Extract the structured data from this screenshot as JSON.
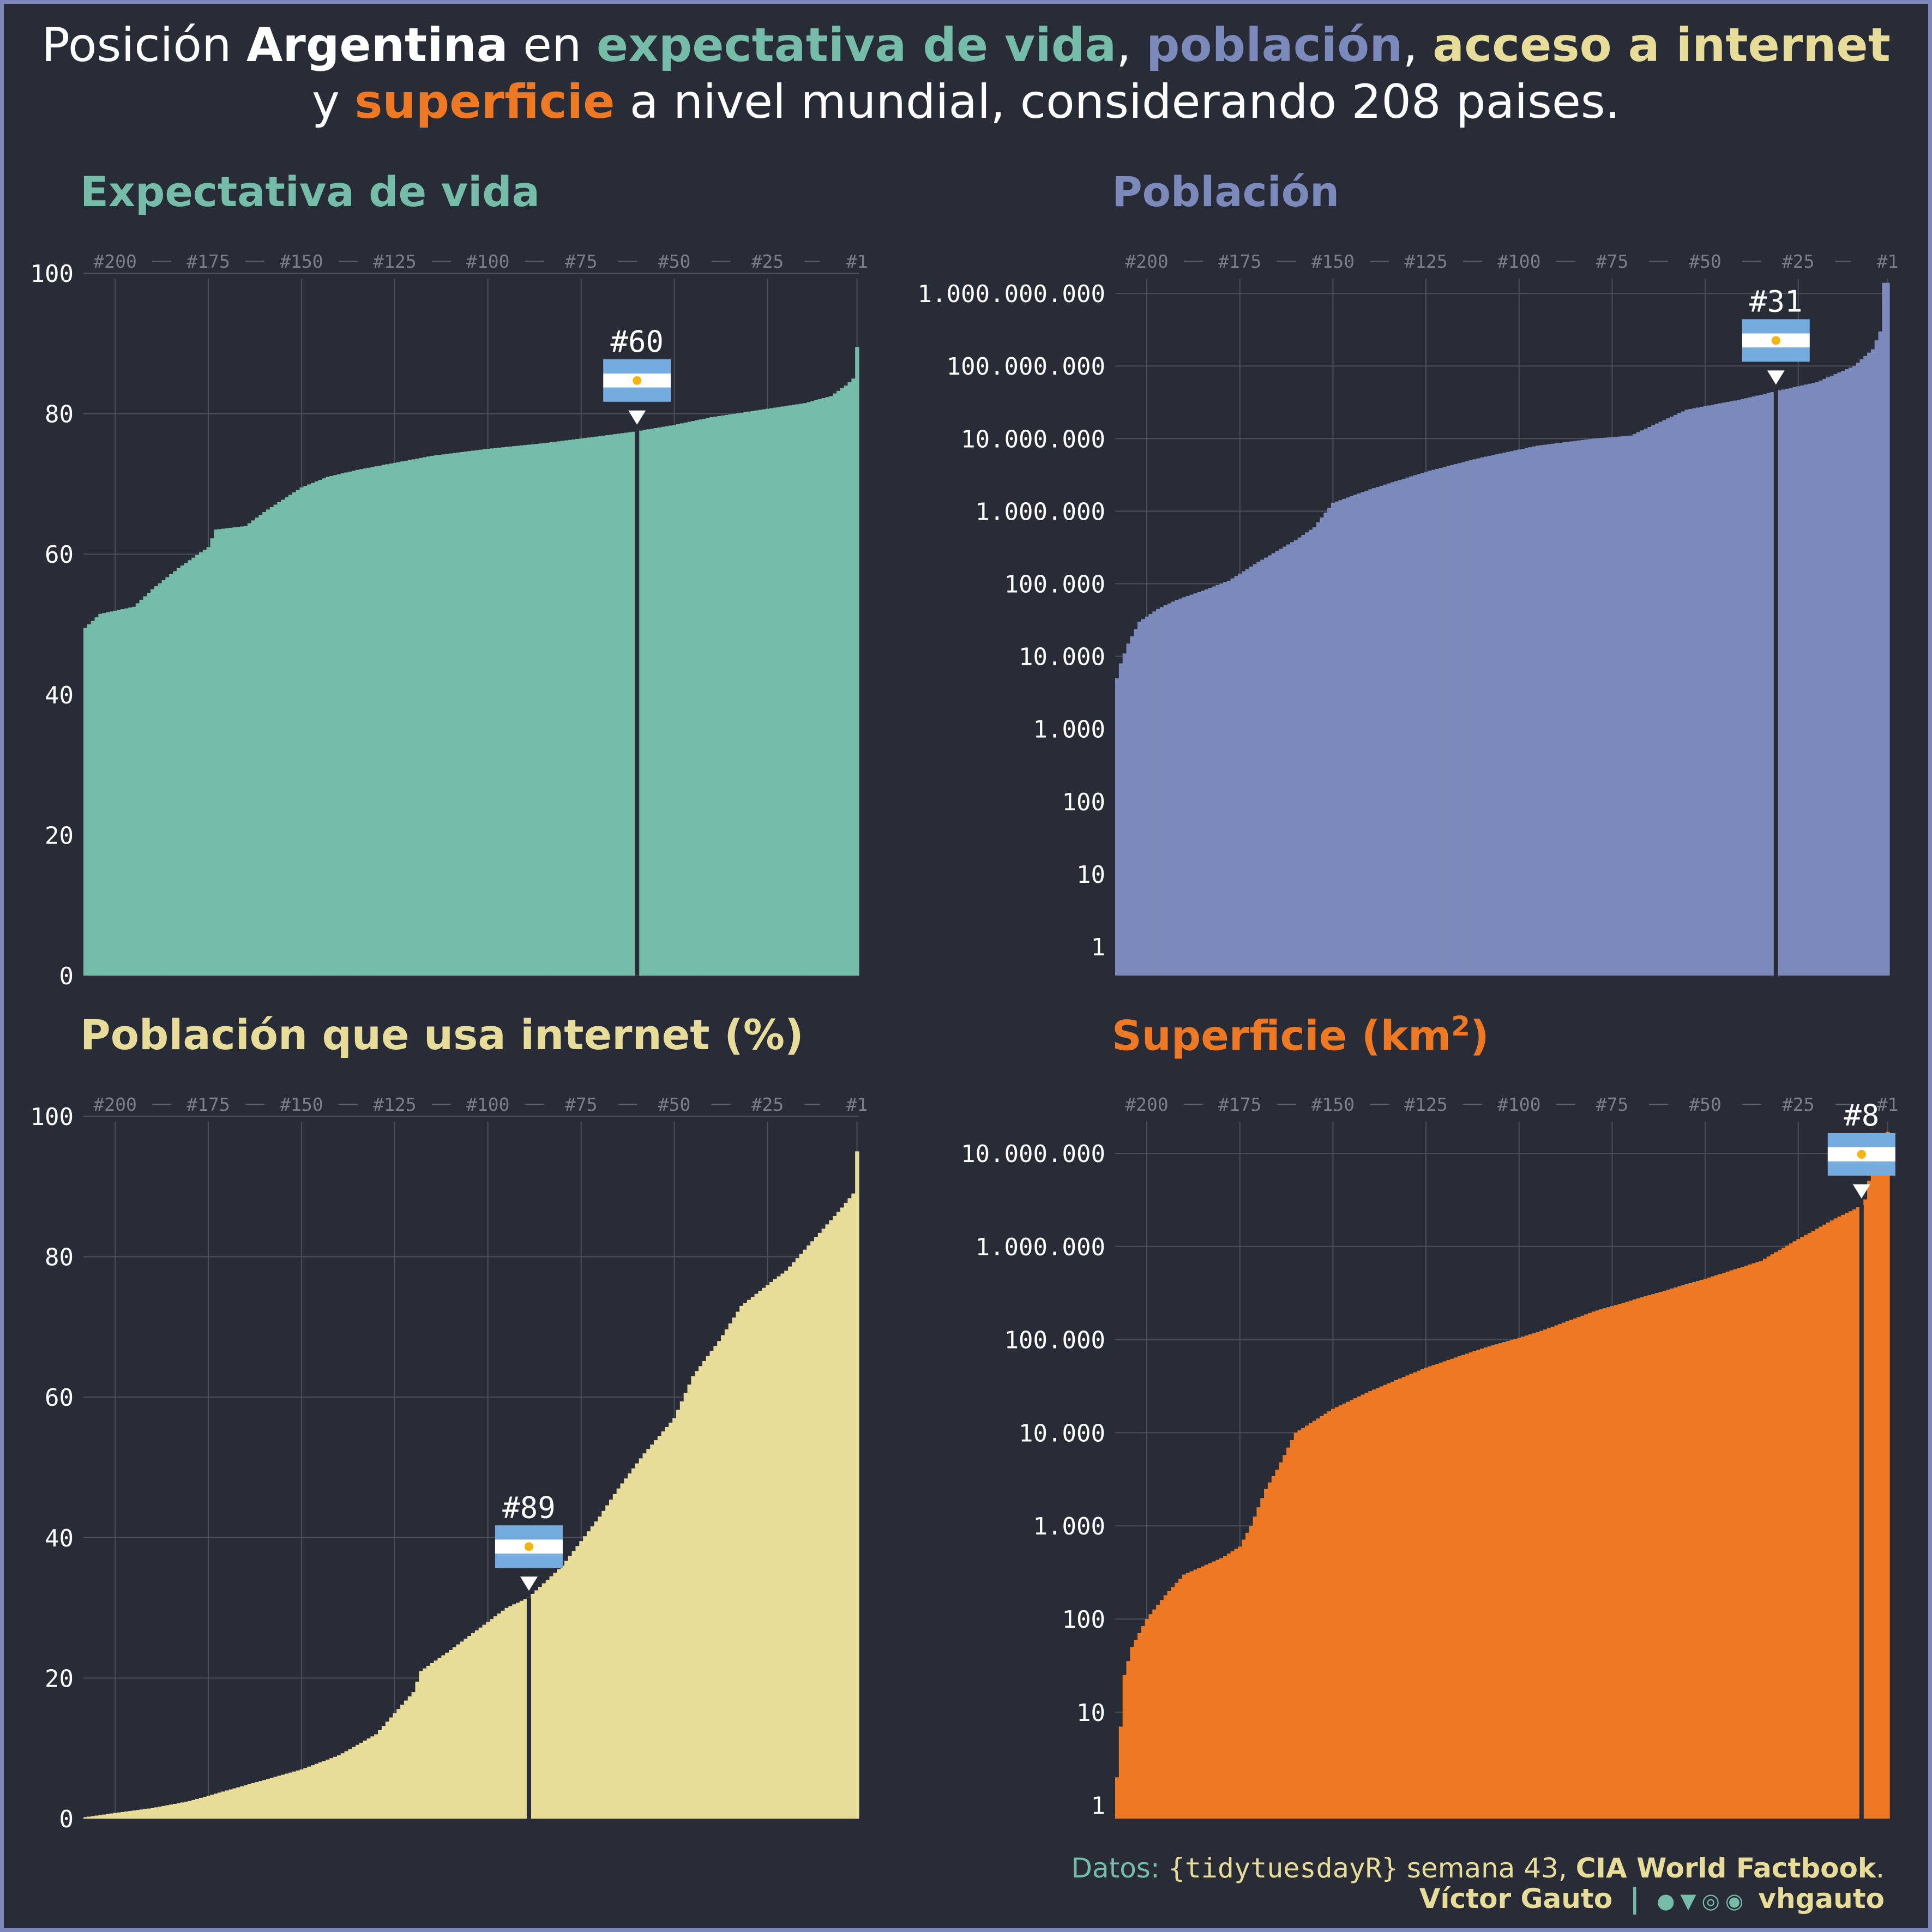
{
  "colors": {
    "life": "#75bca9",
    "pop": "#7c8abb",
    "inet": "#e8dc99",
    "area": "#ef7823",
    "background": "#282c37",
    "grid": "#4b4f5a",
    "flag_blue": "#74acdf",
    "flag_sun": "#f6b40e"
  },
  "title": {
    "line1_a": "Posición ",
    "country": "Argentina",
    "line1_b": " en ",
    "life": "expectativa de vida",
    "comma1": ", ",
    "pop": "población",
    "comma2": ", ",
    "inet": "acceso a internet",
    "line2_a": "y ",
    "area": "superficie",
    "line2_b": " a nivel mundial, considerando 208 paises."
  },
  "caption": {
    "datos_label": "Datos: ",
    "source": "{tidytuesdayR}",
    "week": " semana 43, ",
    "factbook": "CIA World Factbook",
    "period": ".",
    "author": "Víctor Gauto",
    "separator": "|",
    "handle": "vhgauto"
  },
  "chart_data": [
    {
      "type": "bar",
      "title": "Expectativa de vida",
      "color_key": "life",
      "scale": "linear",
      "ylim": [
        0,
        100
      ],
      "yticks": [
        0,
        20,
        40,
        60,
        80,
        100
      ],
      "ytick_labels": [
        "0",
        "20",
        "40",
        "60",
        "80",
        "100"
      ],
      "rank_ticks": [
        "#200",
        "#175",
        "#150",
        "#125",
        "#100",
        "#75",
        "#50",
        "#25",
        "#1"
      ],
      "n": 208,
      "highlight_rank": 60,
      "highlight_label": "#60",
      "highlight_value": 77.5,
      "curve": [
        [
          208,
          49.5
        ],
        [
          204,
          51.5
        ],
        [
          195,
          52.5
        ],
        [
          190,
          55
        ],
        [
          183,
          58
        ],
        [
          175,
          61
        ],
        [
          173,
          63.5
        ],
        [
          165,
          64
        ],
        [
          160,
          66
        ],
        [
          150,
          69.5
        ],
        [
          143,
          71
        ],
        [
          135,
          72
        ],
        [
          125,
          73
        ],
        [
          115,
          74
        ],
        [
          100,
          75
        ],
        [
          85,
          75.8
        ],
        [
          70,
          76.8
        ],
        [
          60,
          77.5
        ],
        [
          50,
          78.4
        ],
        [
          40,
          79.5
        ],
        [
          25,
          80.7
        ],
        [
          15,
          81.5
        ],
        [
          8,
          82.5
        ],
        [
          4,
          84
        ],
        [
          2,
          85
        ],
        [
          1,
          89.5
        ]
      ]
    },
    {
      "type": "bar",
      "title": "Población",
      "color_key": "pop",
      "scale": "log",
      "ylim": [
        0.4,
        1900000000
      ],
      "yticks": [
        1,
        10,
        100,
        1000,
        10000,
        100000,
        1000000,
        10000000,
        100000000,
        1000000000
      ],
      "ytick_labels": [
        "1",
        "10",
        "100",
        "1.000",
        "10.000",
        "100.000",
        "1.000.000",
        "10.000.000",
        "100.000.000",
        "1.000.000.000"
      ],
      "rank_ticks": [
        "#200",
        "#175",
        "#150",
        "#125",
        "#100",
        "#75",
        "#50",
        "#25",
        "#1"
      ],
      "n": 208,
      "highlight_rank": 31,
      "highlight_label": "#31",
      "highlight_value": 45000000,
      "curve": [
        [
          208,
          5000
        ],
        [
          207,
          8000
        ],
        [
          205,
          15000
        ],
        [
          202,
          30000
        ],
        [
          197,
          45000
        ],
        [
          192,
          60000
        ],
        [
          185,
          80000
        ],
        [
          178,
          110000
        ],
        [
          170,
          200000
        ],
        [
          160,
          400000
        ],
        [
          155,
          600000
        ],
        [
          150,
          1300000
        ],
        [
          140,
          2000000
        ],
        [
          125,
          3500000
        ],
        [
          110,
          5500000
        ],
        [
          95,
          8000000
        ],
        [
          80,
          10000000
        ],
        [
          70,
          11000000
        ],
        [
          55,
          25000000
        ],
        [
          40,
          35000000
        ],
        [
          31,
          45000000
        ],
        [
          20,
          60000000
        ],
        [
          10,
          100000000
        ],
        [
          5,
          170000000
        ],
        [
          3,
          300000000
        ],
        [
          2,
          1400000000
        ],
        [
          1,
          1400000000
        ]
      ]
    },
    {
      "type": "bar",
      "title": "Población que usa internet (%)",
      "color_key": "inet",
      "scale": "linear",
      "ylim": [
        0,
        100
      ],
      "yticks": [
        0,
        20,
        40,
        60,
        80,
        100
      ],
      "ytick_labels": [
        "0",
        "20",
        "40",
        "60",
        "80",
        "100"
      ],
      "rank_ticks": [
        "#200",
        "#175",
        "#150",
        "#125",
        "#100",
        "#75",
        "#50",
        "#25",
        "#1"
      ],
      "n": 208,
      "highlight_rank": 89,
      "highlight_label": "#89",
      "highlight_value": 31.5,
      "curve": [
        [
          208,
          0.2
        ],
        [
          200,
          0.8
        ],
        [
          190,
          1.5
        ],
        [
          180,
          2.5
        ],
        [
          170,
          4
        ],
        [
          160,
          5.5
        ],
        [
          150,
          7
        ],
        [
          140,
          9
        ],
        [
          130,
          12
        ],
        [
          125,
          15
        ],
        [
          120,
          18
        ],
        [
          118,
          21
        ],
        [
          110,
          24
        ],
        [
          100,
          28
        ],
        [
          95,
          30
        ],
        [
          89,
          31.5
        ],
        [
          80,
          36
        ],
        [
          70,
          43
        ],
        [
          65,
          47
        ],
        [
          58,
          52
        ],
        [
          50,
          57
        ],
        [
          45,
          63
        ],
        [
          38,
          68
        ],
        [
          32,
          73
        ],
        [
          25,
          76
        ],
        [
          20,
          78
        ],
        [
          15,
          81
        ],
        [
          10,
          84
        ],
        [
          5,
          87
        ],
        [
          2,
          89
        ],
        [
          1,
          95
        ]
      ]
    },
    {
      "type": "bar",
      "title_text": "Superficie (km",
      "title_sup": "2",
      "title_end": ")",
      "color_key": "area",
      "scale": "log",
      "ylim": [
        0.72,
        25000000
      ],
      "yticks": [
        1,
        10,
        100,
        1000,
        10000,
        100000,
        1000000,
        10000000
      ],
      "ytick_labels": [
        "1",
        "10",
        "100",
        "1.000",
        "10.000",
        "100.000",
        "1.000.000",
        "10.000.000"
      ],
      "rank_ticks": [
        "#200",
        "#175",
        "#150",
        "#125",
        "#100",
        "#75",
        "#50",
        "#25",
        "#1"
      ],
      "n": 208,
      "highlight_rank": 8,
      "highlight_label": "#8",
      "highlight_value": 2780000,
      "curve": [
        [
          208,
          2
        ],
        [
          207,
          7
        ],
        [
          206,
          25
        ],
        [
          204,
          50
        ],
        [
          200,
          100
        ],
        [
          195,
          180
        ],
        [
          190,
          300
        ],
        [
          180,
          450
        ],
        [
          175,
          600
        ],
        [
          172,
          1000
        ],
        [
          168,
          2500
        ],
        [
          165,
          4000
        ],
        [
          160,
          10000
        ],
        [
          150,
          18000
        ],
        [
          140,
          28000
        ],
        [
          125,
          50000
        ],
        [
          110,
          80000
        ],
        [
          95,
          120000
        ],
        [
          80,
          200000
        ],
        [
          65,
          300000
        ],
        [
          50,
          450000
        ],
        [
          35,
          700000
        ],
        [
          25,
          1200000
        ],
        [
          15,
          2000000
        ],
        [
          10,
          2500000
        ],
        [
          8,
          2780000
        ],
        [
          7,
          3200000
        ],
        [
          5,
          8000000
        ],
        [
          1,
          17000000
        ]
      ]
    }
  ]
}
